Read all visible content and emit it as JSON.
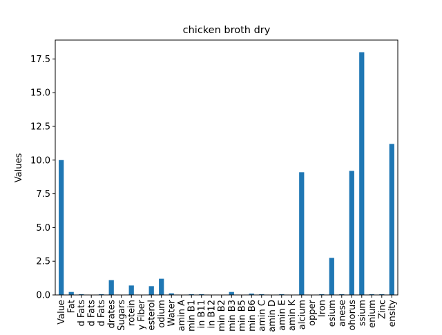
{
  "chart_data": {
    "type": "bar",
    "title": "chicken broth dry",
    "xlabel": "",
    "ylabel": "Values",
    "ylim": [
      0,
      18.9
    ],
    "yticks": [
      0.0,
      2.5,
      5.0,
      7.5,
      10.0,
      12.5,
      15.0,
      17.5
    ],
    "ytick_labels": [
      "0.0",
      "2.5",
      "5.0",
      "7.5",
      "10.0",
      "12.5",
      "15.0",
      "17.5"
    ],
    "bar_color": "#1f77b4",
    "grid": false,
    "legend": "none",
    "categories": [
      "Value",
      "Fat",
      "d Fats",
      "d Fats",
      "d Fats",
      "drates",
      "Sugars",
      "rotein",
      "y Fiber",
      "esterol",
      "odium",
      "Water",
      "amin A",
      "min B1",
      "in B11",
      "in B12",
      "min B2",
      "min B3",
      "min B5",
      "min B6",
      "amin C",
      "amin D",
      "amin E",
      "amin K",
      "alcium",
      "opper",
      "Iron",
      "esium",
      "anese",
      "ohorus",
      "ssium",
      "enium",
      "Zinc",
      "ensity"
    ],
    "values": [
      10.0,
      0.22,
      0.05,
      0.0,
      0.05,
      1.1,
      0.0,
      0.7,
      0.0,
      0.65,
      1.2,
      0.12,
      0.0,
      0.05,
      0.05,
      0.0,
      0.0,
      0.22,
      0.0,
      0.1,
      0.05,
      0.0,
      0.05,
      0.0,
      9.1,
      0.0,
      0.05,
      2.75,
      0.05,
      9.2,
      18.0,
      0.05,
      0.05,
      11.2
    ]
  }
}
